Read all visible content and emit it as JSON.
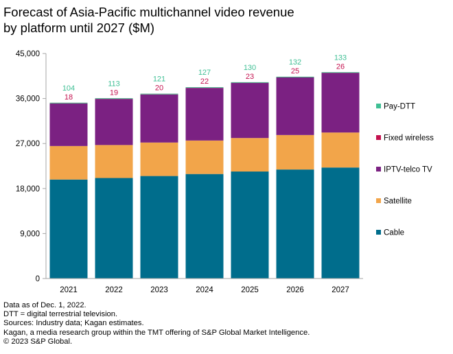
{
  "title_lines": [
    "Forecast of Asia-Pacific multichannel video revenue",
    "by platform until 2027 ($M)"
  ],
  "chart_data": {
    "type": "bar",
    "stacked": true,
    "categories": [
      "2021",
      "2022",
      "2023",
      "2024",
      "2025",
      "2026",
      "2027"
    ],
    "ylim": [
      0,
      45000
    ],
    "yticks": [
      "0",
      "9,000",
      "18,000",
      "27,000",
      "36,000",
      "45,000"
    ],
    "ytick_values": [
      0,
      9000,
      18000,
      27000,
      36000,
      45000
    ],
    "legend_position": "right",
    "series": [
      {
        "name": "Cable",
        "color": "#006D8C",
        "values": [
          19800,
          20100,
          20500,
          20900,
          21400,
          21800,
          22200
        ]
      },
      {
        "name": "Satellite",
        "color": "#F2A54A",
        "values": [
          6700,
          6600,
          6700,
          6700,
          6700,
          6900,
          7000
        ]
      },
      {
        "name": "IPTV-telco TV",
        "color": "#7B2182",
        "values": [
          8500,
          9200,
          9600,
          10500,
          11000,
          11500,
          11900
        ]
      },
      {
        "name": "Fixed wireless",
        "color": "#C4114E",
        "values": [
          18,
          19,
          20,
          22,
          23,
          25,
          26
        ],
        "labels": [
          "18",
          "19",
          "20",
          "22",
          "23",
          "25",
          "26"
        ]
      },
      {
        "name": "Pay-DTT",
        "color": "#3FBF94",
        "values": [
          104,
          113,
          121,
          127,
          130,
          132,
          133
        ],
        "labels": [
          "104",
          "113",
          "121",
          "127",
          "130",
          "132",
          "133"
        ]
      }
    ],
    "legend_order": [
      "Pay-DTT",
      "Fixed wireless",
      "IPTV-telco TV",
      "Satellite",
      "Cable"
    ]
  },
  "footnotes": [
    "Data as of Dec. 1, 2022.",
    "DTT = digital terrestrial television.",
    "Sources: Industry data; Kagan estimates.",
    "Kagan, a media research group within the TMT offering of S&P Global Market Intelligence.",
    "© 2023 S&P Global."
  ],
  "colors": {
    "axis": "#a6a6a6",
    "text": "#000000"
  }
}
